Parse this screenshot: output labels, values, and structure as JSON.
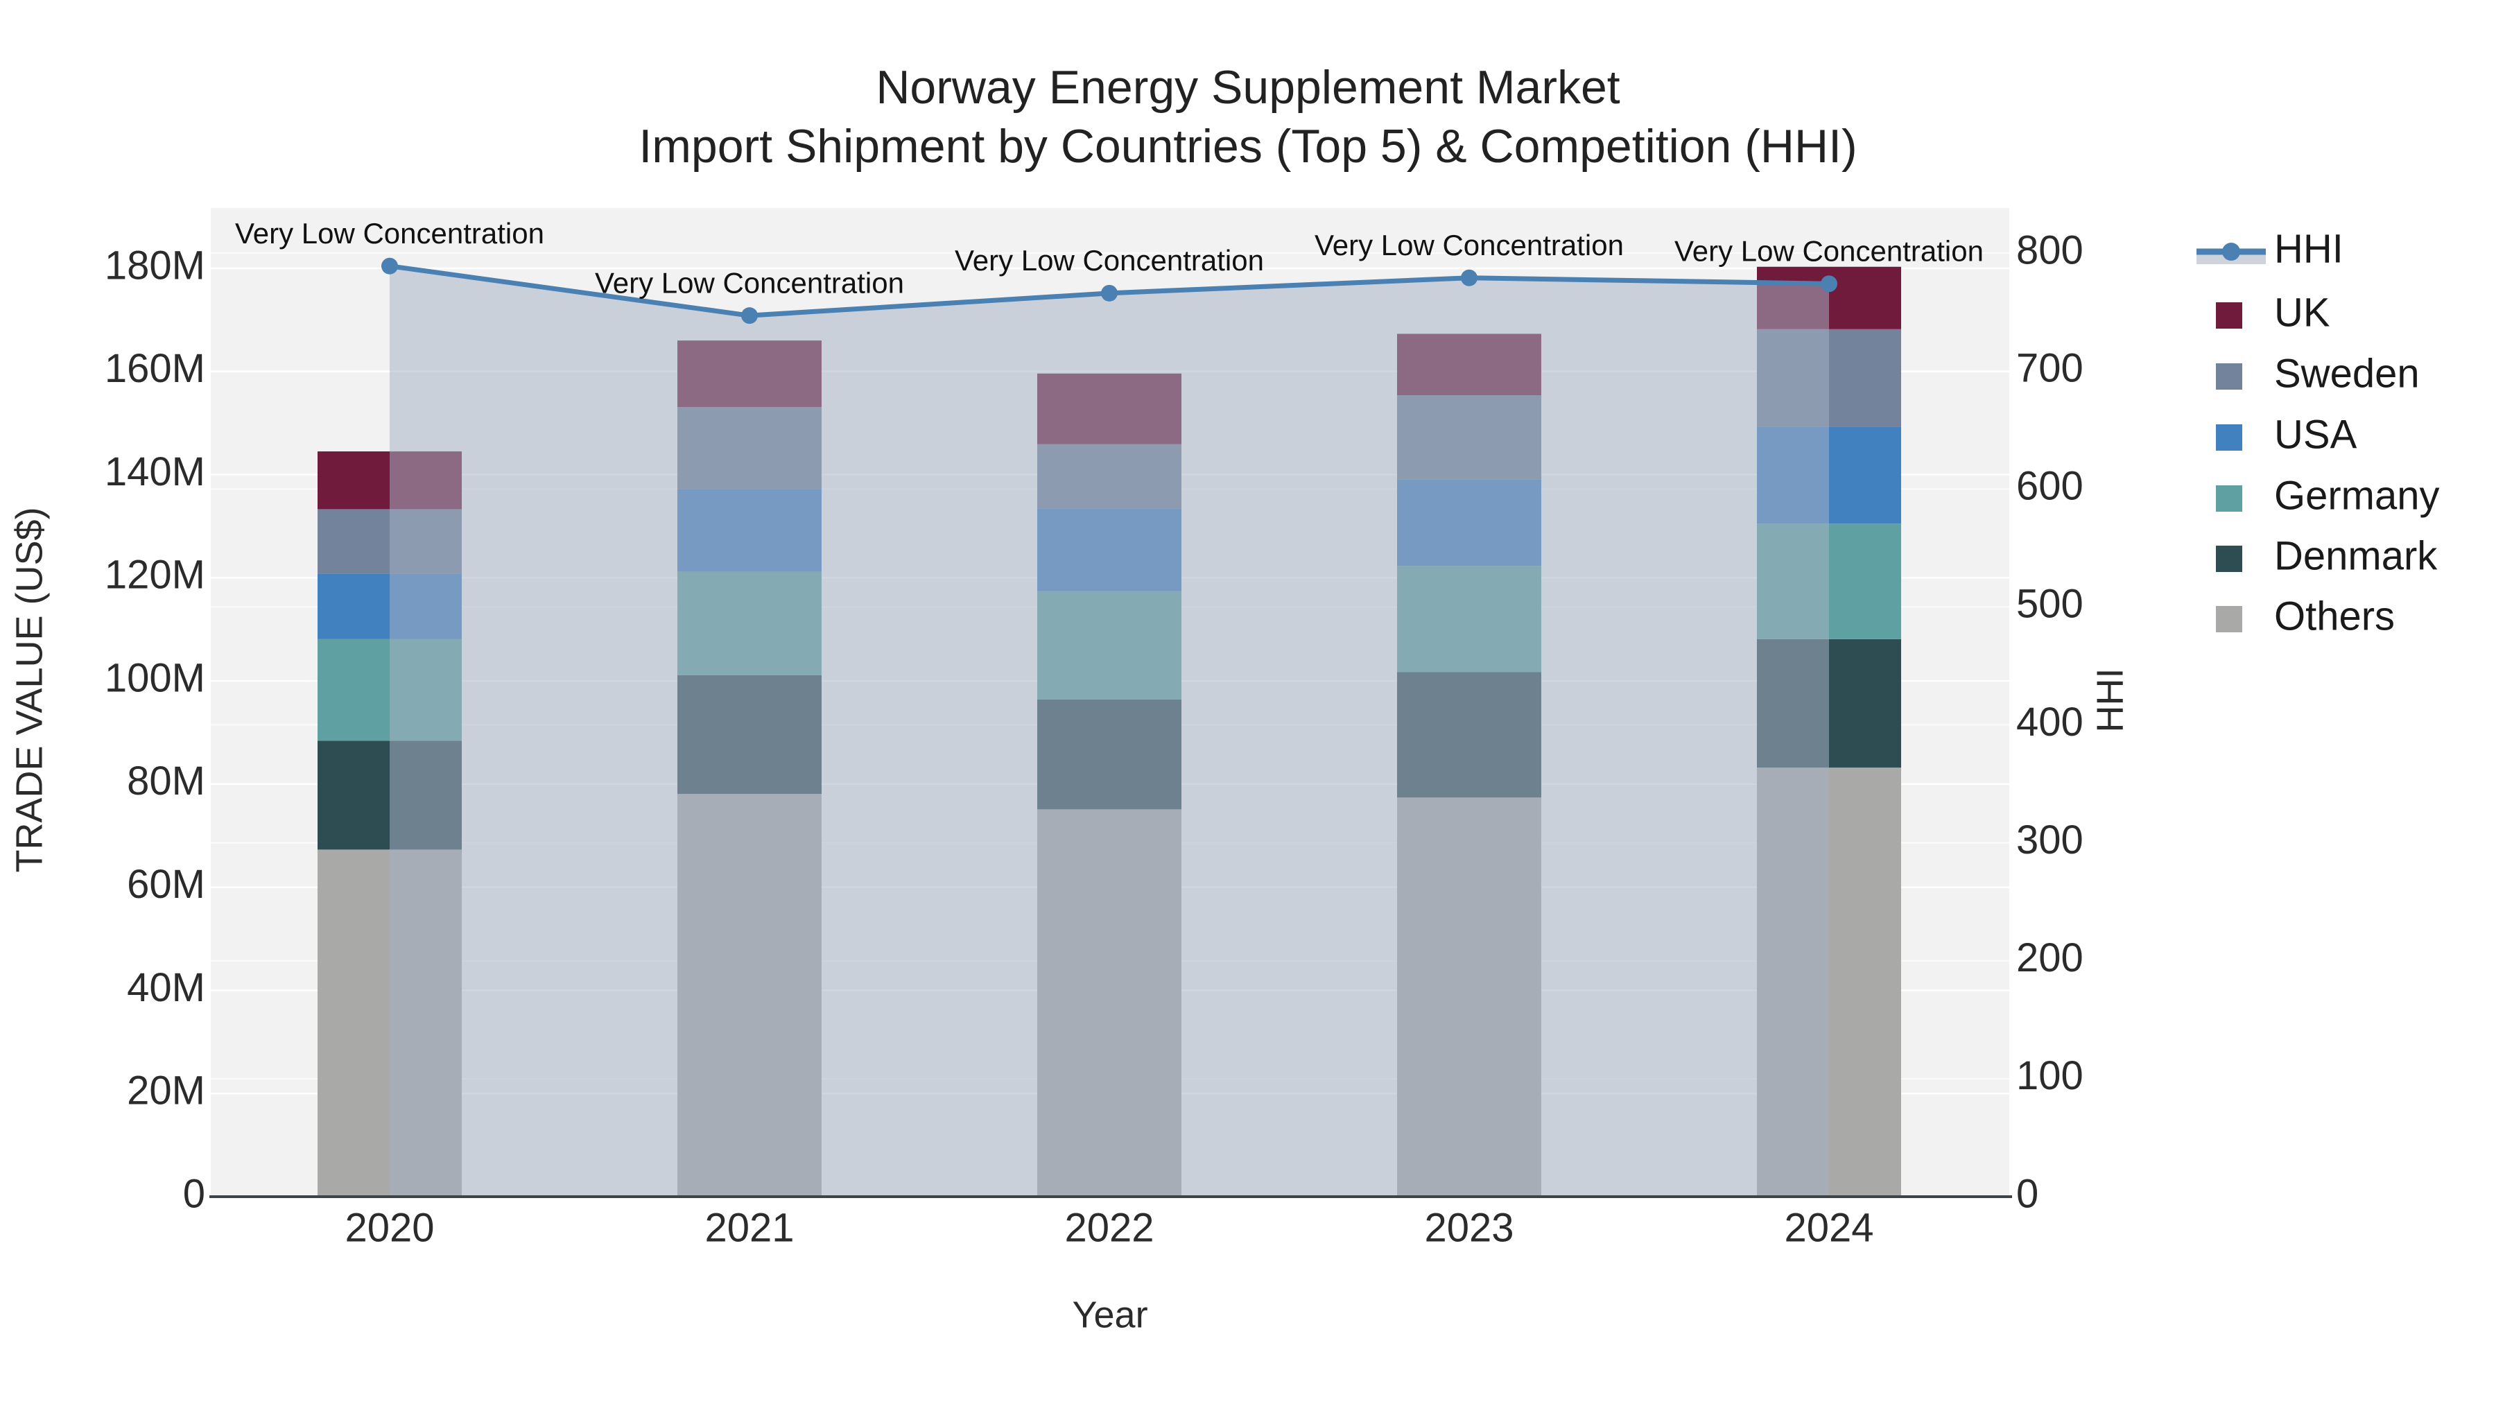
{
  "title": {
    "line1": "Norway Energy Supplement Market",
    "line2": "Import Shipment by Countries (Top 5) & Competition (HHI)"
  },
  "axes": {
    "x_title": "Year",
    "y_left_title": "TRADE VALUE (US$)",
    "y_right_title": "HHI",
    "x_tick_labels": [
      "2020",
      "2021",
      "2022",
      "2023",
      "2024"
    ],
    "y_left_tick_labels": [
      "0",
      "20M",
      "40M",
      "60M",
      "80M",
      "100M",
      "120M",
      "140M",
      "160M",
      "180M"
    ],
    "y_left_tick_values": [
      0,
      20,
      40,
      60,
      80,
      100,
      120,
      140,
      160,
      180
    ],
    "y_right_tick_labels": [
      "0",
      "100",
      "200",
      "300",
      "400",
      "500",
      "600",
      "700",
      "800"
    ],
    "y_right_tick_values": [
      0,
      100,
      200,
      300,
      400,
      500,
      600,
      700,
      800
    ]
  },
  "colors": {
    "paper_bg": "#ffffff",
    "plot_bg": "#f2f2f2",
    "grid_left": "rgba(255,255,255,0.95)",
    "grid_right": "rgba(255,255,255,0.7)",
    "axis_line": "#3f4448",
    "text": "#2b2b2b",
    "annotation_text": "#111111",
    "hhi_line": "#4a80b2",
    "hhi_area_fill": "rgba(167,177,196,0.53)",
    "hhi_legend_band": "#cdd2db"
  },
  "legend": {
    "items": [
      {
        "label": "HHI",
        "type": "line",
        "color": "#4a80b2"
      },
      {
        "label": "UK",
        "type": "box",
        "color": "#701a3c"
      },
      {
        "label": "Sweden",
        "type": "box",
        "color": "#72839b"
      },
      {
        "label": "USA",
        "type": "box",
        "color": "#4281bf"
      },
      {
        "label": "Germany",
        "type": "box",
        "color": "#5fa1a2"
      },
      {
        "label": "Denmark",
        "type": "box",
        "color": "#2e4d52"
      },
      {
        "label": "Others",
        "type": "box",
        "color": "#a9a9a7"
      }
    ]
  },
  "chart_data": {
    "type": "bar",
    "subtype": "stacked-bars-with-secondary-axis-line",
    "title": "Norway Energy Supplement Market",
    "subtitle": "Import Shipment by Countries (Top 5) & Competition (HHI)",
    "xlabel": "Year",
    "ylabel_left": "TRADE VALUE (US$)",
    "ylabel_right": "HHI",
    "categories": [
      "2020",
      "2021",
      "2022",
      "2023",
      "2024"
    ],
    "units_left": "millions US$",
    "ylim_left": [
      0,
      191.7
    ],
    "ylim_right": [
      0,
      838
    ],
    "grid": true,
    "legend_position": "right",
    "series": [
      {
        "name": "Others",
        "stack_order": 1,
        "color": "#a9a9a7",
        "values": [
          67.3,
          78.1,
          75.1,
          77.4,
          83.2
        ]
      },
      {
        "name": "Denmark",
        "stack_order": 2,
        "color": "#2e4d52",
        "values": [
          21.1,
          23.0,
          21.3,
          24.3,
          24.9
        ]
      },
      {
        "name": "Germany",
        "stack_order": 3,
        "color": "#5fa1a2",
        "values": [
          19.7,
          20.1,
          21.0,
          20.6,
          22.4
        ]
      },
      {
        "name": "USA",
        "stack_order": 4,
        "color": "#4281bf",
        "values": [
          12.7,
          16.0,
          16.0,
          16.8,
          18.8
        ]
      },
      {
        "name": "Sweden",
        "stack_order": 5,
        "color": "#72839b",
        "values": [
          12.5,
          15.9,
          12.5,
          16.3,
          18.9
        ]
      },
      {
        "name": "UK",
        "stack_order": 6,
        "color": "#701a3c",
        "values": [
          11.2,
          12.9,
          13.7,
          11.9,
          12.1
        ]
      }
    ],
    "bar_totals": [
      144.5,
      166.0,
      159.6,
      167.3,
      180.3
    ],
    "line_series": {
      "name": "HHI",
      "axis": "right",
      "color": "#4a80b2",
      "fill_to_zero": true,
      "values": [
        789,
        747,
        766,
        779,
        774
      ]
    },
    "annotations": [
      {
        "x": "2020",
        "text": "Very Low Concentration"
      },
      {
        "x": "2021",
        "text": "Very Low Concentration"
      },
      {
        "x": "2022",
        "text": "Very Low Concentration"
      },
      {
        "x": "2023",
        "text": "Very Low Concentration"
      },
      {
        "x": "2024",
        "text": "Very Low Concentration"
      }
    ]
  }
}
